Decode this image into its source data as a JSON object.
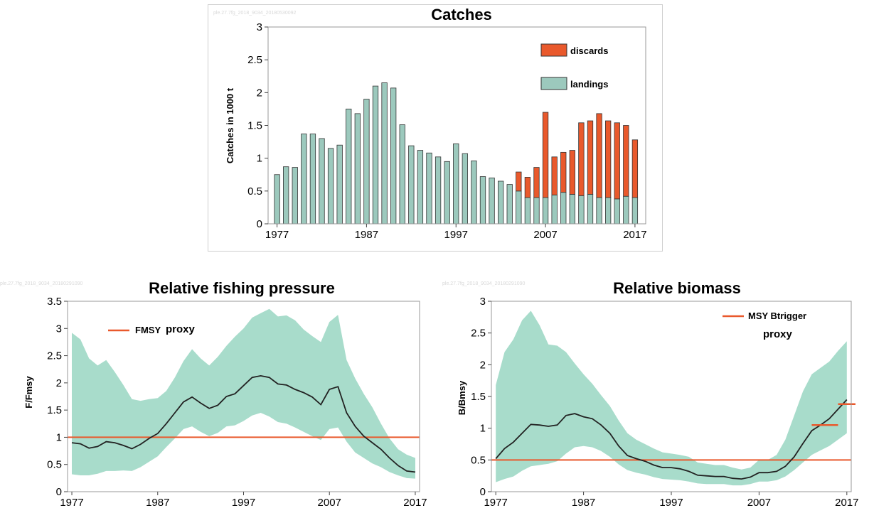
{
  "chart_data": [
    {
      "type": "bar",
      "title": "Catches",
      "ylabel": "Catches in 1000 t",
      "xlabel": "",
      "watermark": "ple.27.7fg_2018_9034_20180530092",
      "ylim": [
        0,
        3
      ],
      "yticks": [
        "0",
        "0.5",
        "1",
        "1.5",
        "2",
        "2.5",
        "3"
      ],
      "xticks": [
        "1977",
        "1987",
        "1997",
        "2007",
        "2017"
      ],
      "legend": "top-right",
      "colors": {
        "landings": "#9cc9bd",
        "discards": "#e9592c"
      },
      "years": [
        1977,
        1978,
        1979,
        1980,
        1981,
        1982,
        1983,
        1984,
        1985,
        1986,
        1987,
        1988,
        1989,
        1990,
        1991,
        1992,
        1993,
        1994,
        1995,
        1996,
        1997,
        1998,
        1999,
        2000,
        2001,
        2002,
        2003,
        2004,
        2005,
        2006,
        2007,
        2008,
        2009,
        2010,
        2011,
        2012,
        2013,
        2014,
        2015,
        2016,
        2017
      ],
      "series": [
        {
          "name": "landings",
          "values": [
            0.75,
            0.87,
            0.86,
            1.37,
            1.37,
            1.3,
            1.15,
            1.2,
            1.75,
            1.68,
            1.9,
            2.1,
            2.15,
            2.07,
            1.51,
            1.19,
            1.12,
            1.08,
            1.02,
            0.95,
            1.22,
            1.07,
            0.96,
            0.72,
            0.7,
            0.65,
            0.6,
            0.5,
            0.4,
            0.4,
            0.4,
            0.44,
            0.48,
            0.45,
            0.43,
            0.45,
            0.4,
            0.4,
            0.38,
            0.42,
            0.4
          ]
        },
        {
          "name": "discards",
          "values": [
            0,
            0,
            0,
            0,
            0,
            0,
            0,
            0,
            0,
            0,
            0,
            0,
            0,
            0,
            0,
            0,
            0,
            0,
            0,
            0,
            0,
            0,
            0,
            0,
            0,
            0,
            0,
            0.29,
            0.31,
            0.46,
            1.3,
            0.58,
            0.61,
            0.67,
            1.11,
            1.12,
            1.28,
            1.17,
            1.16,
            1.08,
            0.88
          ]
        }
      ]
    },
    {
      "type": "line",
      "title": "Relative fishing pressure",
      "ylabel": "F/Fmsy",
      "xlabel": "",
      "watermark": "ple.27.7fg_2018_9034_20180291090",
      "ylim": [
        0,
        3.5
      ],
      "yticks": [
        "0",
        "0.5",
        "1",
        "1.5",
        "2",
        "2.5",
        "3",
        "3.5"
      ],
      "xticks": [
        "1977",
        "1987",
        "1997",
        "2007",
        "2017"
      ],
      "legend": "top-left",
      "reference": {
        "name": "FMSY",
        "suffix": "proxy",
        "value": 1.0,
        "color": "#e9592c"
      },
      "colors": {
        "band": "#a8dccb",
        "line": "#222222"
      },
      "x": [
        1977,
        1978,
        1979,
        1980,
        1981,
        1982,
        1983,
        1984,
        1985,
        1986,
        1987,
        1988,
        1989,
        1990,
        1991,
        1992,
        1993,
        1994,
        1995,
        1996,
        1997,
        1998,
        1999,
        2000,
        2001,
        2002,
        2003,
        2004,
        2005,
        2006,
        2007,
        2008,
        2009,
        2010,
        2011,
        2012,
        2013,
        2014,
        2015,
        2016,
        2017
      ],
      "series": [
        {
          "name": "F/Fmsy",
          "values": [
            0.9,
            0.88,
            0.8,
            0.83,
            0.92,
            0.9,
            0.85,
            0.79,
            0.87,
            0.98,
            1.07,
            1.25,
            1.45,
            1.65,
            1.74,
            1.63,
            1.53,
            1.59,
            1.75,
            1.8,
            1.95,
            2.1,
            2.13,
            2.1,
            1.98,
            1.96,
            1.88,
            1.82,
            1.74,
            1.6,
            1.88,
            1.93,
            1.45,
            1.2,
            1.02,
            0.9,
            0.78,
            0.62,
            0.48,
            0.38,
            0.36
          ]
        },
        {
          "name": "upper",
          "values": [
            2.92,
            2.8,
            2.45,
            2.32,
            2.42,
            2.2,
            1.96,
            1.7,
            1.67,
            1.7,
            1.72,
            1.85,
            2.1,
            2.4,
            2.62,
            2.45,
            2.32,
            2.48,
            2.68,
            2.85,
            3.0,
            3.2,
            3.28,
            3.36,
            3.22,
            3.24,
            3.15,
            2.98,
            2.86,
            2.75,
            3.12,
            3.25,
            2.42,
            2.08,
            1.8,
            1.55,
            1.25,
            0.98,
            0.78,
            0.68,
            0.62
          ]
        },
        {
          "name": "lower",
          "values": [
            0.32,
            0.3,
            0.3,
            0.33,
            0.38,
            0.38,
            0.39,
            0.38,
            0.45,
            0.55,
            0.65,
            0.82,
            0.98,
            1.15,
            1.2,
            1.1,
            1.02,
            1.08,
            1.2,
            1.22,
            1.3,
            1.4,
            1.45,
            1.38,
            1.28,
            1.25,
            1.18,
            1.1,
            1.02,
            0.95,
            1.15,
            1.18,
            0.92,
            0.72,
            0.62,
            0.52,
            0.45,
            0.36,
            0.3,
            0.25,
            0.24
          ]
        }
      ]
    },
    {
      "type": "line",
      "title": "Relative biomass",
      "ylabel": "B/Bmsy",
      "xlabel": "",
      "watermark": "ple.27.7fg_2018_9034_20180291090",
      "ylim": [
        0,
        3
      ],
      "yticks": [
        "0",
        "0.5",
        "1",
        "1.5",
        "2",
        "2.5",
        "3"
      ],
      "xticks": [
        "1977",
        "1987",
        "1997",
        "2007",
        "2017"
      ],
      "legend": "top-right",
      "reference": {
        "name": "MSY Btrigger",
        "suffix": "proxy",
        "value": 0.5,
        "color": "#e9592c"
      },
      "markers": [
        {
          "x": [
            2013,
            2016
          ],
          "y": 1.05
        },
        {
          "x": [
            2016,
            2018
          ],
          "y": 1.38
        }
      ],
      "colors": {
        "band": "#a8dccb",
        "line": "#222222"
      },
      "x": [
        1977,
        1978,
        1979,
        1980,
        1981,
        1982,
        1983,
        1984,
        1985,
        1986,
        1987,
        1988,
        1989,
        1990,
        1991,
        1992,
        1993,
        1994,
        1995,
        1996,
        1997,
        1998,
        1999,
        2000,
        2001,
        2002,
        2003,
        2004,
        2005,
        2006,
        2007,
        2008,
        2009,
        2010,
        2011,
        2012,
        2013,
        2014,
        2015,
        2016,
        2017
      ],
      "series": [
        {
          "name": "B/Bmsy",
          "values": [
            0.52,
            0.68,
            0.78,
            0.92,
            1.06,
            1.05,
            1.03,
            1.05,
            1.2,
            1.23,
            1.18,
            1.15,
            1.05,
            0.92,
            0.72,
            0.57,
            0.52,
            0.48,
            0.42,
            0.38,
            0.38,
            0.36,
            0.32,
            0.26,
            0.25,
            0.24,
            0.24,
            0.21,
            0.2,
            0.23,
            0.3,
            0.3,
            0.32,
            0.4,
            0.55,
            0.76,
            0.96,
            1.05,
            1.15,
            1.3,
            1.45
          ]
        },
        {
          "name": "upper",
          "values": [
            1.68,
            2.2,
            2.4,
            2.7,
            2.85,
            2.62,
            2.32,
            2.3,
            2.2,
            2.02,
            1.85,
            1.7,
            1.52,
            1.35,
            1.12,
            0.92,
            0.82,
            0.75,
            0.68,
            0.62,
            0.6,
            0.58,
            0.55,
            0.46,
            0.44,
            0.42,
            0.42,
            0.38,
            0.35,
            0.38,
            0.5,
            0.5,
            0.58,
            0.82,
            1.2,
            1.58,
            1.85,
            1.95,
            2.05,
            2.22,
            2.37
          ]
        },
        {
          "name": "lower",
          "values": [
            0.15,
            0.2,
            0.24,
            0.33,
            0.4,
            0.42,
            0.44,
            0.48,
            0.6,
            0.7,
            0.72,
            0.7,
            0.64,
            0.55,
            0.43,
            0.34,
            0.3,
            0.27,
            0.23,
            0.2,
            0.19,
            0.18,
            0.16,
            0.13,
            0.12,
            0.12,
            0.12,
            0.1,
            0.1,
            0.12,
            0.16,
            0.16,
            0.18,
            0.24,
            0.34,
            0.46,
            0.58,
            0.65,
            0.72,
            0.82,
            0.92
          ]
        }
      ]
    }
  ]
}
